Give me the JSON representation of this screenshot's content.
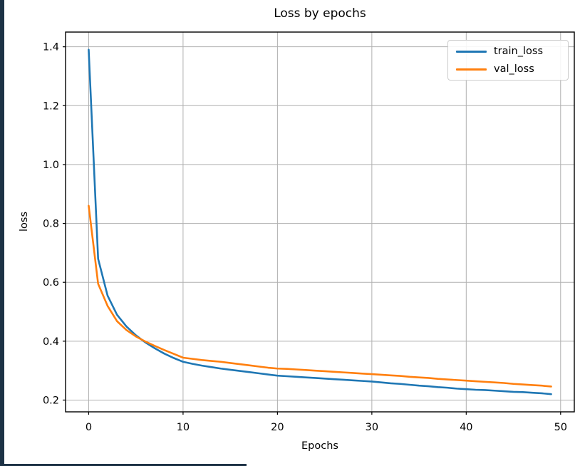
{
  "window": {
    "edge_color": "#1d3245"
  },
  "chart_data": {
    "type": "line",
    "title": "Loss by epochs",
    "xlabel": "Epochs",
    "ylabel": "loss",
    "grid": true,
    "legend_position": "upper right",
    "grid_color": "#b0b0b0",
    "spine_color": "#000000",
    "tick_color": "#000000",
    "xlim": [
      -2.45,
      51.45
    ],
    "ylim": [
      0.16,
      1.45
    ],
    "xticks": [
      0,
      10,
      20,
      30,
      40,
      50
    ],
    "yticks": [
      0.2,
      0.4,
      0.6,
      0.8,
      1.0,
      1.2,
      1.4
    ],
    "x": [
      0,
      1,
      2,
      3,
      4,
      5,
      6,
      7,
      8,
      9,
      10,
      11,
      12,
      13,
      14,
      15,
      16,
      17,
      18,
      19,
      20,
      21,
      22,
      23,
      24,
      25,
      26,
      27,
      28,
      29,
      30,
      31,
      32,
      33,
      34,
      35,
      36,
      37,
      38,
      39,
      40,
      41,
      42,
      43,
      44,
      45,
      46,
      47,
      48,
      49
    ],
    "series": [
      {
        "name": "train_loss",
        "color": "#1f77b4",
        "values": [
          1.39,
          0.68,
          0.555,
          0.49,
          0.45,
          0.42,
          0.396,
          0.376,
          0.358,
          0.343,
          0.33,
          0.323,
          0.317,
          0.312,
          0.307,
          0.303,
          0.299,
          0.295,
          0.291,
          0.287,
          0.283,
          0.281,
          0.279,
          0.277,
          0.275,
          0.273,
          0.271,
          0.269,
          0.267,
          0.265,
          0.263,
          0.26,
          0.257,
          0.255,
          0.252,
          0.249,
          0.247,
          0.244,
          0.242,
          0.239,
          0.237,
          0.235,
          0.234,
          0.232,
          0.23,
          0.228,
          0.227,
          0.225,
          0.223,
          0.22
        ]
      },
      {
        "name": "val_loss",
        "color": "#ff7f0e",
        "values": [
          0.86,
          0.595,
          0.52,
          0.468,
          0.438,
          0.416,
          0.399,
          0.384,
          0.37,
          0.357,
          0.344,
          0.34,
          0.336,
          0.333,
          0.33,
          0.326,
          0.322,
          0.318,
          0.314,
          0.31,
          0.307,
          0.306,
          0.304,
          0.302,
          0.3,
          0.298,
          0.296,
          0.294,
          0.292,
          0.29,
          0.288,
          0.286,
          0.284,
          0.282,
          0.279,
          0.277,
          0.275,
          0.272,
          0.27,
          0.268,
          0.266,
          0.264,
          0.262,
          0.26,
          0.258,
          0.255,
          0.253,
          0.251,
          0.249,
          0.246
        ]
      }
    ]
  }
}
